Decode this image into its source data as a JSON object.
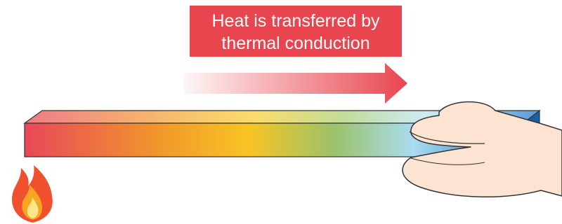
{
  "label": {
    "lines": [
      "Heat is transferred by",
      "thermal conduction"
    ]
  }
}
